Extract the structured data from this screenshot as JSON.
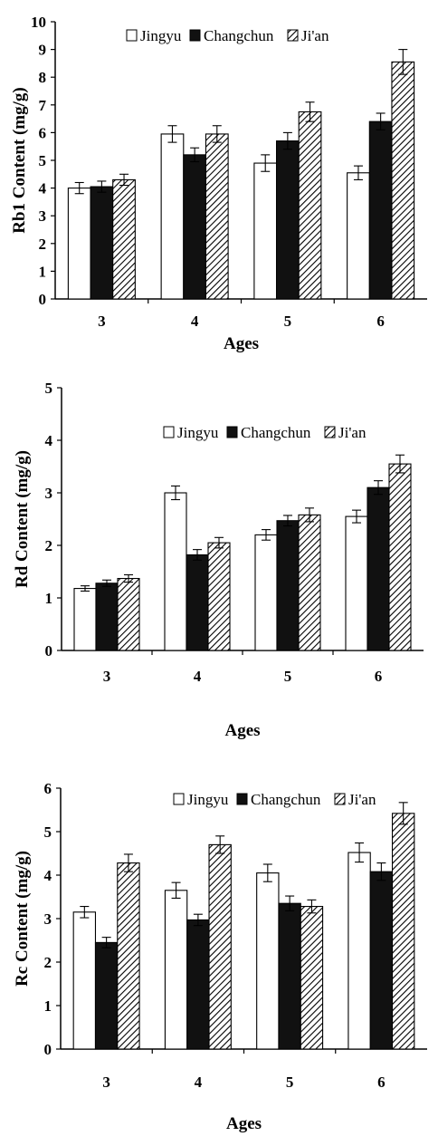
{
  "figure": {
    "legend_labels": [
      "Jingyu",
      "Changchun",
      "Ji'an"
    ],
    "colors": {
      "jingyu": "#ffffff",
      "changchun": "#111111",
      "jian_hatch": "#000000"
    }
  },
  "chart_data": [
    {
      "type": "bar",
      "categories": [
        "3",
        "4",
        "5",
        "6"
      ],
      "xlabel": "Ages",
      "ylabel": "Rb1 Content (mg/g)",
      "ylim": [
        0,
        10
      ],
      "yticks": [
        "0",
        "1",
        "2",
        "3",
        "4",
        "5",
        "6",
        "7",
        "8",
        "9",
        "10"
      ],
      "legend_position": "top-center",
      "series": [
        {
          "name": "Jingyu",
          "values": [
            4.0,
            5.95,
            4.9,
            4.55
          ],
          "errors": [
            0.2,
            0.3,
            0.3,
            0.25
          ]
        },
        {
          "name": "Changchun",
          "values": [
            4.05,
            5.2,
            5.7,
            6.4
          ],
          "errors": [
            0.2,
            0.25,
            0.3,
            0.3
          ]
        },
        {
          "name": "Ji'an",
          "values": [
            4.3,
            5.95,
            6.75,
            8.55
          ],
          "errors": [
            0.2,
            0.3,
            0.35,
            0.45
          ]
        }
      ]
    },
    {
      "type": "bar",
      "categories": [
        "3",
        "4",
        "5",
        "6"
      ],
      "xlabel": "Ages",
      "ylabel": "Rd Content (mg/g)",
      "ylim": [
        0,
        5
      ],
      "yticks": [
        "0",
        "1",
        "2",
        "3",
        "4",
        "5"
      ],
      "legend_position": "top-center",
      "series": [
        {
          "name": "Jingyu",
          "values": [
            1.18,
            3.0,
            2.2,
            2.55
          ],
          "errors": [
            0.05,
            0.13,
            0.1,
            0.12
          ]
        },
        {
          "name": "Changchun",
          "values": [
            1.28,
            1.82,
            2.47,
            3.1
          ],
          "errors": [
            0.06,
            0.1,
            0.1,
            0.13
          ]
        },
        {
          "name": "Ji'an",
          "values": [
            1.37,
            2.05,
            2.58,
            3.55
          ],
          "errors": [
            0.07,
            0.1,
            0.13,
            0.17
          ]
        }
      ]
    },
    {
      "type": "bar",
      "categories": [
        "3",
        "4",
        "5",
        "6"
      ],
      "xlabel": "Ages",
      "ylabel": "Rc Content (mg/g)",
      "ylim": [
        0,
        6
      ],
      "yticks": [
        "0",
        "1",
        "2",
        "3",
        "4",
        "5",
        "6"
      ],
      "legend_position": "top-center",
      "series": [
        {
          "name": "Jingyu",
          "values": [
            3.15,
            3.65,
            4.05,
            4.52
          ],
          "errors": [
            0.13,
            0.18,
            0.2,
            0.22
          ]
        },
        {
          "name": "Changchun",
          "values": [
            2.45,
            2.97,
            3.35,
            4.08
          ],
          "errors": [
            0.12,
            0.13,
            0.17,
            0.2
          ]
        },
        {
          "name": "Ji'an",
          "values": [
            4.28,
            4.7,
            3.28,
            5.42
          ],
          "errors": [
            0.2,
            0.2,
            0.15,
            0.25
          ]
        }
      ]
    }
  ]
}
